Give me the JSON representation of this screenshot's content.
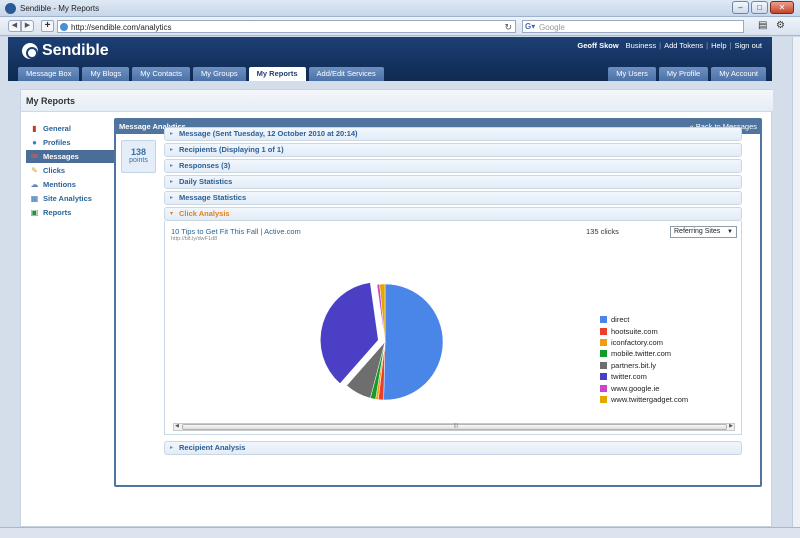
{
  "browser": {
    "title": "Sendible - My Reports",
    "url": "http://sendible.com/analytics",
    "search_placeholder": "Google"
  },
  "header": {
    "brand": "Sendible",
    "user": "Geoff Skow",
    "links": [
      "Business",
      "Add Tokens",
      "Help",
      "Sign out"
    ],
    "tabs": [
      "Message Box",
      "My Blogs",
      "My Contacts",
      "My Groups",
      "My Reports",
      "Add/Edit Services"
    ],
    "active_tab": "My Reports",
    "right_tabs": [
      "My Users",
      "My Profile",
      "My Account"
    ]
  },
  "page": {
    "title": "My Reports"
  },
  "sidebar": {
    "items": [
      {
        "label": "General",
        "icon": "bar-chart-icon"
      },
      {
        "label": "Profiles",
        "icon": "profile-icon"
      },
      {
        "label": "Messages",
        "icon": "message-icon",
        "active": true
      },
      {
        "label": "Clicks",
        "icon": "click-icon"
      },
      {
        "label": "Mentions",
        "icon": "mention-icon"
      },
      {
        "label": "Site Analytics",
        "icon": "site-analytics-icon"
      },
      {
        "label": "Reports",
        "icon": "report-icon"
      }
    ]
  },
  "panel": {
    "title": "Message Analytics",
    "back": "« Back to Messages",
    "points_value": "138",
    "points_label": "points",
    "sections": [
      "Message (Sent Tuesday, 12 October 2010 at 20:14)",
      "Recipients (Displaying 1 of 1)",
      "Responses (3)",
      "Daily Statistics",
      "Message Statistics",
      "Click Analysis",
      "Recipient Analysis"
    ],
    "click_analysis": {
      "link_title": "10 Tips to Get Fit This Fall | Active.com",
      "link_url": "http://bit.ly/dwF1d8",
      "clicks": "135 clicks",
      "dropdown_value": "Referring Sites"
    }
  },
  "chart_data": {
    "type": "pie",
    "categories": [
      "direct",
      "hootsuite.com",
      "iconfactory.com",
      "mobile.twitter.com",
      "partners.bit.ly",
      "twitter.com",
      "www.google.ie",
      "www.twittergadget.com"
    ],
    "values": [
      68,
      2,
      1,
      2,
      10,
      49,
      1,
      2
    ],
    "colors": [
      "#4a86e8",
      "#e8402a",
      "#f39c12",
      "#159a2a",
      "#6e6e6e",
      "#4b3fc6",
      "#cc44cc",
      "#e0a800"
    ],
    "exploded": "twitter.com",
    "legend_position": "right"
  }
}
